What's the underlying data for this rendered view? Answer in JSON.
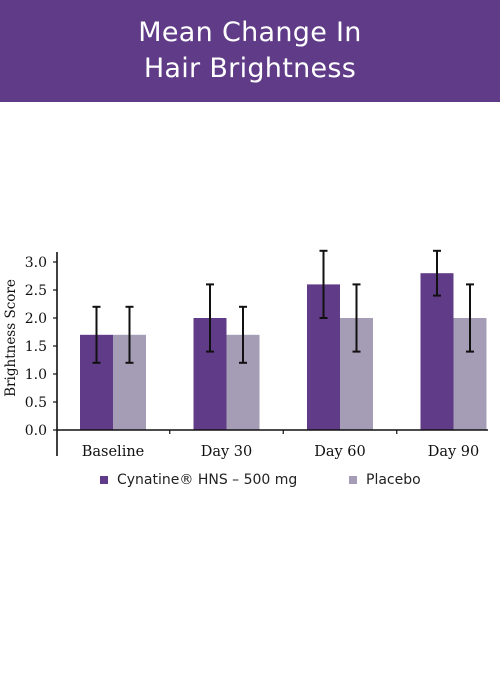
{
  "header": {
    "title_line1": "Mean Change In",
    "title_line2": "Hair Brightness",
    "background": "#603b87"
  },
  "legend": {
    "cynatine_label": "Cynatine® HNS – 500 mg",
    "placebo_label": "Placebo"
  },
  "chart_data": {
    "type": "bar",
    "title": "Mean Change In Hair Brightness",
    "xlabel": "",
    "ylabel": "Brightness Score",
    "ylim": [
      0,
      3.0
    ],
    "yticks": [
      "0.0",
      "0.5",
      "1.0",
      "1.5",
      "2.0",
      "2.5",
      "3.0"
    ],
    "categories": [
      "Baseline",
      "Day 30",
      "Day 60",
      "Day 90"
    ],
    "series": [
      {
        "name": "Cynatine® HNS – 500 mg",
        "color": "#603b87",
        "values": [
          1.7,
          2.0,
          2.6,
          2.8
        ],
        "error_low": [
          1.2,
          1.4,
          2.0,
          2.4
        ],
        "error_high": [
          2.2,
          2.6,
          3.2,
          3.2
        ]
      },
      {
        "name": "Placebo",
        "color": "#a59db5",
        "values": [
          1.7,
          1.7,
          2.0,
          2.0
        ],
        "error_low": [
          1.2,
          1.2,
          1.4,
          1.4
        ],
        "error_high": [
          2.2,
          2.2,
          2.6,
          2.6
        ]
      }
    ],
    "grid": false,
    "legend_position": "bottom"
  }
}
